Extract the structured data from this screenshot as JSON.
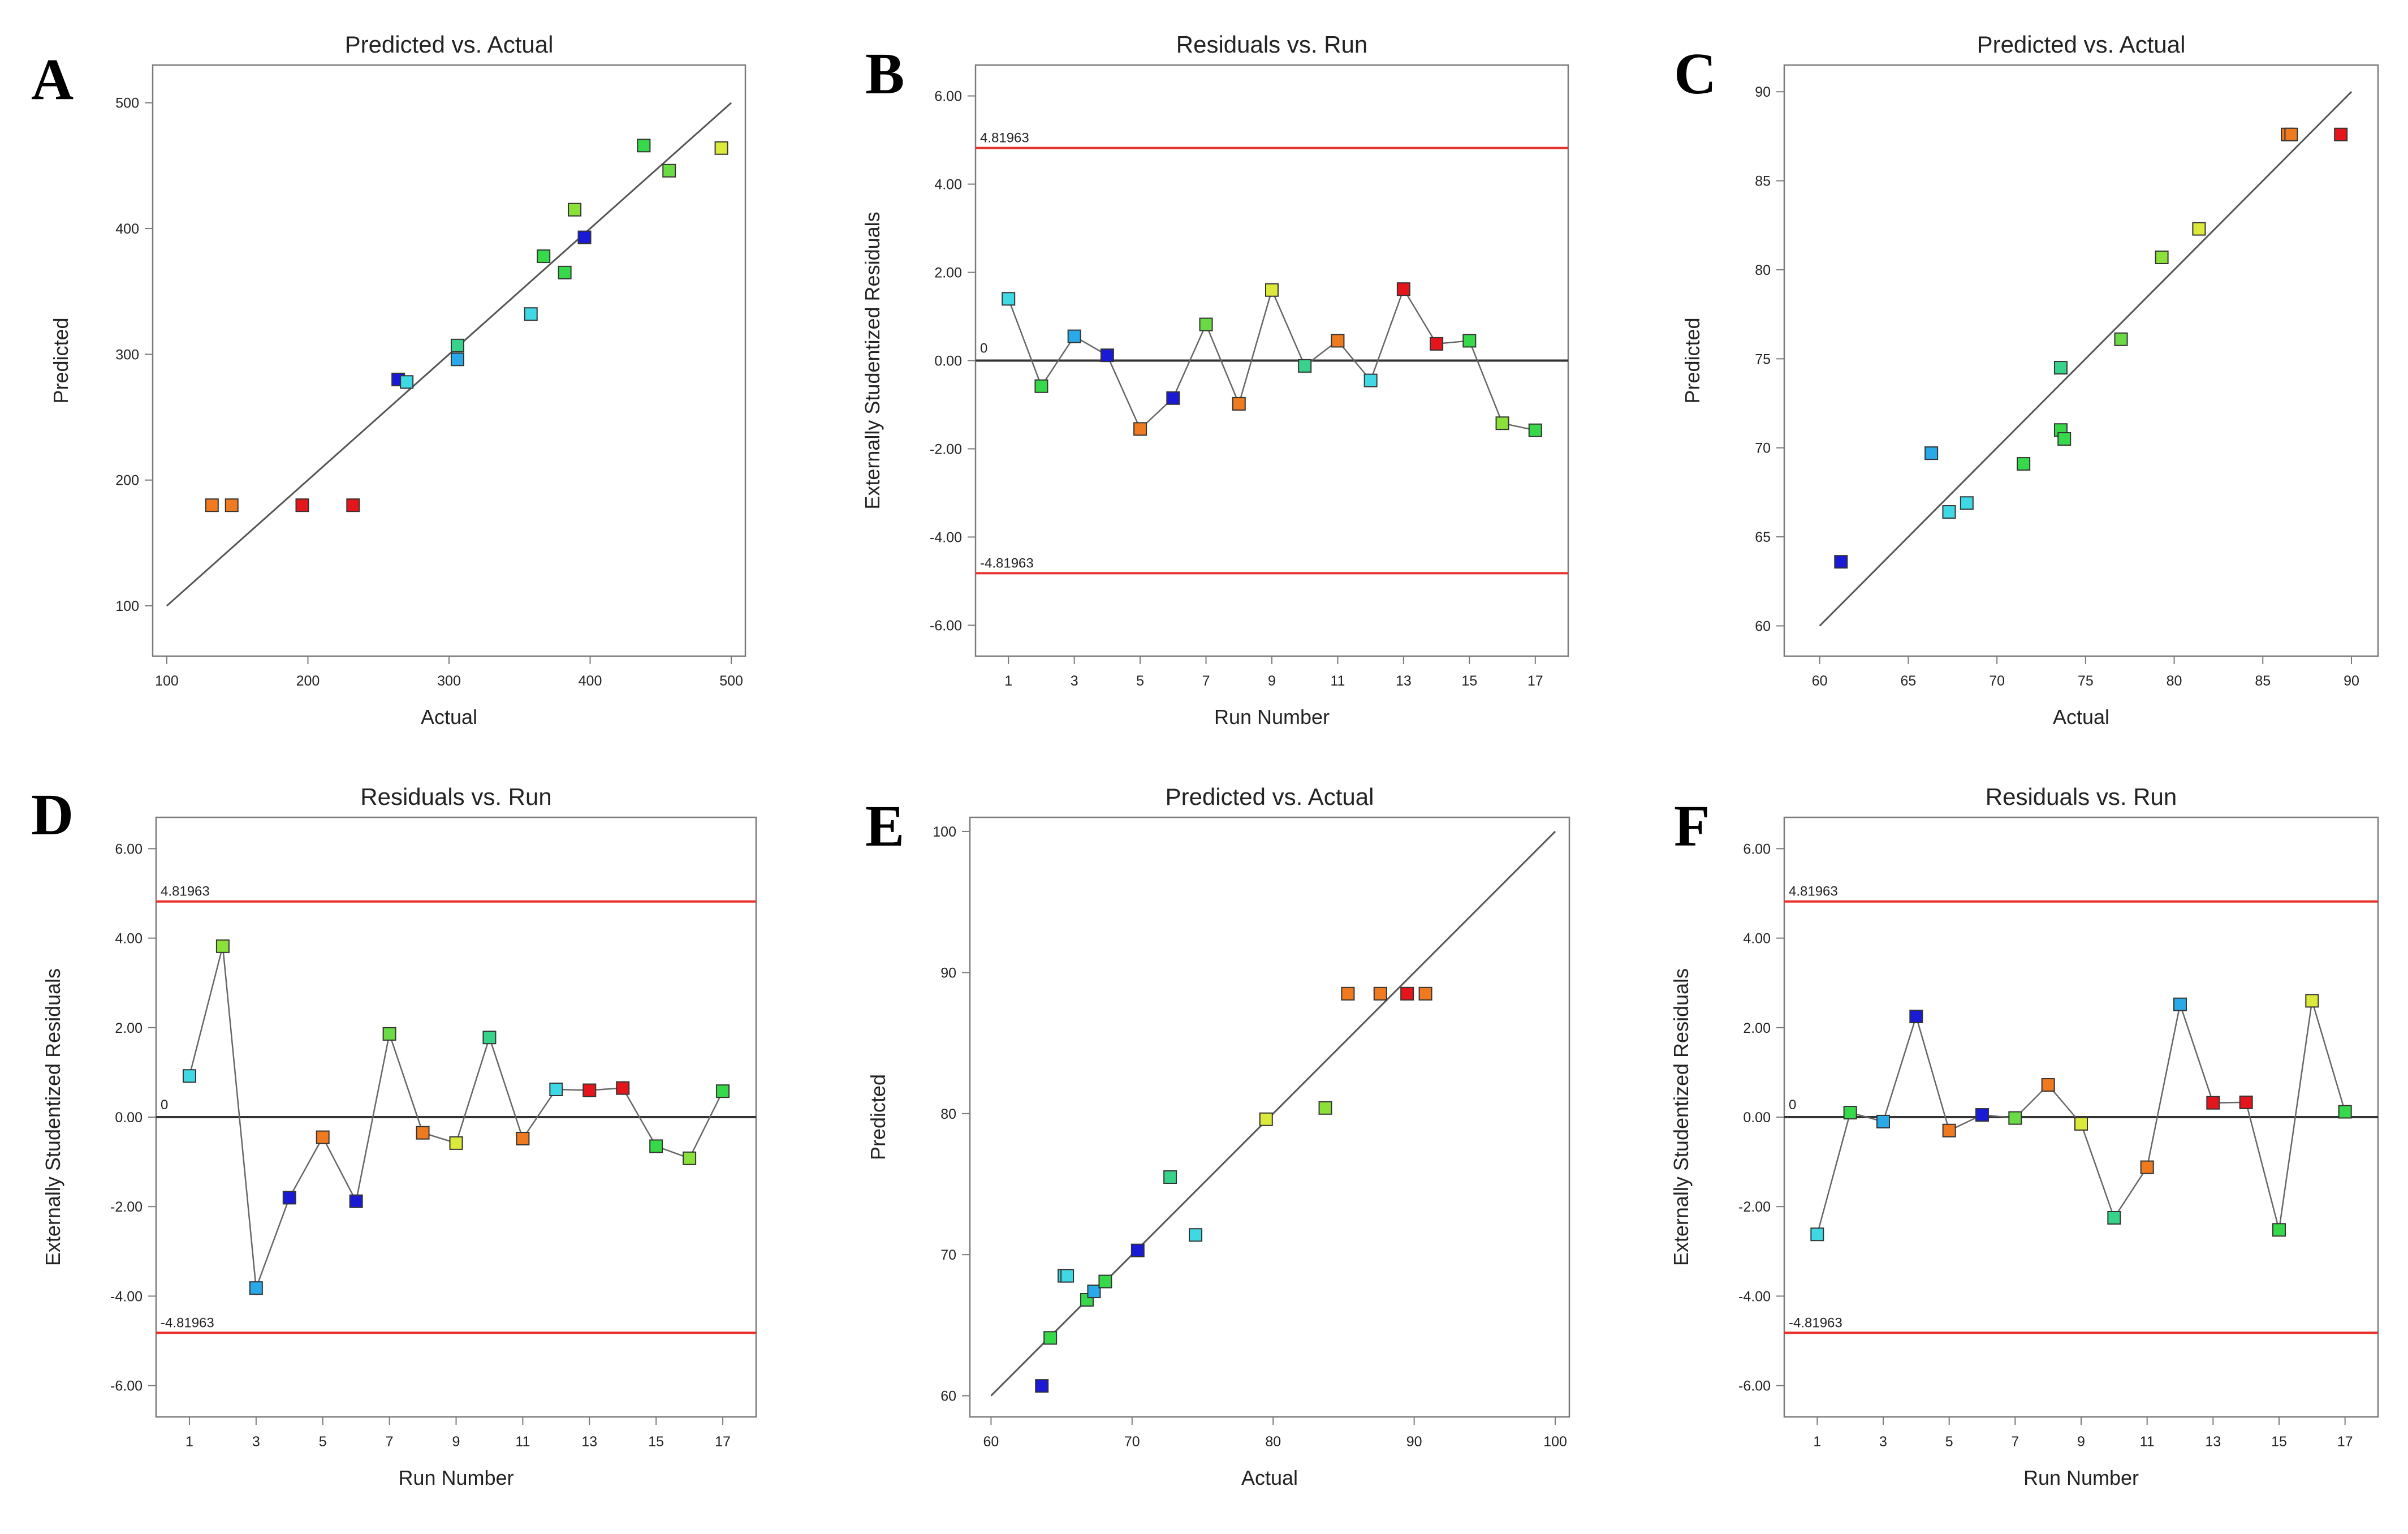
{
  "figure": {
    "background": "#ffffff",
    "plot_frame_color": "#7a7a7a",
    "fit_line_color": "#555555",
    "limit_line_color": "#e8312c",
    "zero_line_color": "#333333",
    "connector_color": "#666666"
  },
  "chart_data": [
    {
      "panel": "A",
      "type": "scatter",
      "title": "Predicted vs. Actual",
      "xlabel": "Actual",
      "ylabel": "Predicted",
      "xlim": [
        90,
        510
      ],
      "ylim": [
        60,
        530
      ],
      "xticks": [
        100,
        200,
        300,
        400,
        500
      ],
      "yticks": [
        100,
        200,
        300,
        400,
        500
      ],
      "tick_labels_x": [
        "100",
        "200",
        "300",
        "400",
        "500"
      ],
      "tick_labels_y": [
        "100",
        "200",
        "300",
        "400",
        "500"
      ],
      "reference_line": {
        "x": [
          100,
          500
        ],
        "y": [
          100,
          500
        ]
      },
      "points": [
        {
          "x": 132,
          "y": 180,
          "color": "#f07a20"
        },
        {
          "x": 146,
          "y": 180,
          "color": "#f07a20"
        },
        {
          "x": 196,
          "y": 180,
          "color": "#e5161b"
        },
        {
          "x": 232,
          "y": 180,
          "color": "#e5161b"
        },
        {
          "x": 264,
          "y": 280,
          "color": "#1a1ad6"
        },
        {
          "x": 270,
          "y": 278,
          "color": "#3fd9e6"
        },
        {
          "x": 306,
          "y": 307,
          "color": "#38d38a"
        },
        {
          "x": 306,
          "y": 296,
          "color": "#2aa9e8"
        },
        {
          "x": 358,
          "y": 332,
          "color": "#3fd9e6"
        },
        {
          "x": 367,
          "y": 378,
          "color": "#36d94a"
        },
        {
          "x": 382,
          "y": 365,
          "color": "#36d94a"
        },
        {
          "x": 389,
          "y": 415,
          "color": "#8be03a"
        },
        {
          "x": 396,
          "y": 393,
          "color": "#1a1ad6"
        },
        {
          "x": 438,
          "y": 466,
          "color": "#36d94a"
        },
        {
          "x": 456,
          "y": 446,
          "color": "#6bdb45"
        },
        {
          "x": 493,
          "y": 464,
          "color": "#dbe93a"
        }
      ]
    },
    {
      "panel": "B",
      "type": "line",
      "title": "Residuals vs. Run",
      "xlabel": "Run Number",
      "ylabel": "Externally Studentized Residuals",
      "xlim": [
        0,
        18
      ],
      "ylim": [
        -6.7,
        6.7
      ],
      "xticks": [
        1,
        3,
        5,
        7,
        9,
        11,
        13,
        15,
        17
      ],
      "yticks": [
        -6,
        -4,
        -2,
        0,
        2,
        4,
        6
      ],
      "tick_labels_x": [
        "1",
        "3",
        "5",
        "7",
        "9",
        "11",
        "13",
        "15",
        "17"
      ],
      "tick_labels_y": [
        "-6.00",
        "-4.00",
        "-2.00",
        "0.00",
        "2.00",
        "4.00",
        "6.00"
      ],
      "upper_limit": 4.81963,
      "lower_limit": -4.81963,
      "upper_limit_label": "4.81963",
      "lower_limit_label": "-4.81963",
      "zero_label": "0",
      "points": [
        {
          "x": 1,
          "y": 1.4,
          "color": "#3fd9e6"
        },
        {
          "x": 2,
          "y": -0.58,
          "color": "#36d94a"
        },
        {
          "x": 3,
          "y": 0.55,
          "color": "#2aa9e8"
        },
        {
          "x": 4,
          "y": 0.12,
          "color": "#1a1ad6"
        },
        {
          "x": 5,
          "y": -1.55,
          "color": "#f07a20"
        },
        {
          "x": 6,
          "y": -0.85,
          "color": "#1a1ad6"
        },
        {
          "x": 7,
          "y": 0.82,
          "color": "#6bdb45"
        },
        {
          "x": 8,
          "y": -0.98,
          "color": "#f07a20"
        },
        {
          "x": 9,
          "y": 1.6,
          "color": "#dbe93a"
        },
        {
          "x": 10,
          "y": -0.12,
          "color": "#38d38a"
        },
        {
          "x": 11,
          "y": 0.45,
          "color": "#f07a20"
        },
        {
          "x": 12,
          "y": -0.45,
          "color": "#3fd9e6"
        },
        {
          "x": 13,
          "y": 1.62,
          "color": "#e5161b"
        },
        {
          "x": 14,
          "y": 0.38,
          "color": "#e5161b"
        },
        {
          "x": 15,
          "y": 0.45,
          "color": "#36d94a"
        },
        {
          "x": 16,
          "y": -1.42,
          "color": "#8be03a"
        },
        {
          "x": 17,
          "y": -1.58,
          "color": "#36d94a"
        }
      ]
    },
    {
      "panel": "C",
      "type": "scatter",
      "title": "Predicted vs. Actual",
      "xlabel": "Actual",
      "ylabel": "Predicted",
      "xlim": [
        58,
        91.5
      ],
      "ylim": [
        58.3,
        91.5
      ],
      "xticks": [
        60,
        65,
        70,
        75,
        80,
        85,
        90
      ],
      "yticks": [
        60,
        65,
        70,
        75,
        80,
        85,
        90
      ],
      "tick_labels_x": [
        "60",
        "65",
        "70",
        "75",
        "80",
        "85",
        "90"
      ],
      "tick_labels_y": [
        "60",
        "65",
        "70",
        "75",
        "80",
        "85",
        "90"
      ],
      "reference_line": {
        "x": [
          60,
          90
        ],
        "y": [
          60,
          90
        ]
      },
      "points": [
        {
          "x": 61.2,
          "y": 63.6,
          "color": "#1a1ad6"
        },
        {
          "x": 66.3,
          "y": 69.7,
          "color": "#2aa9e8"
        },
        {
          "x": 67.3,
          "y": 66.4,
          "color": "#3fd9e6"
        },
        {
          "x": 68.3,
          "y": 66.9,
          "color": "#3fd9e6"
        },
        {
          "x": 71.5,
          "y": 69.1,
          "color": "#36d94a"
        },
        {
          "x": 73.6,
          "y": 71.0,
          "color": "#36d94a"
        },
        {
          "x": 73.6,
          "y": 74.5,
          "color": "#38d38a"
        },
        {
          "x": 73.8,
          "y": 70.5,
          "color": "#36d94a"
        },
        {
          "x": 77.0,
          "y": 76.1,
          "color": "#6bdb45"
        },
        {
          "x": 79.3,
          "y": 80.7,
          "color": "#8be03a"
        },
        {
          "x": 81.4,
          "y": 82.3,
          "color": "#dbe93a"
        },
        {
          "x": 86.4,
          "y": 87.6,
          "color": "#f07a20"
        },
        {
          "x": 86.6,
          "y": 87.6,
          "color": "#f07a20"
        },
        {
          "x": 89.4,
          "y": 87.6,
          "color": "#e5161b"
        }
      ]
    },
    {
      "panel": "D",
      "type": "line",
      "title": "Residuals vs. Run",
      "xlabel": "Run Number",
      "ylabel": "Externally Studentized Residuals",
      "xlim": [
        0,
        18
      ],
      "ylim": [
        -6.7,
        6.7
      ],
      "xticks": [
        1,
        3,
        5,
        7,
        9,
        11,
        13,
        15,
        17
      ],
      "yticks": [
        -6,
        -4,
        -2,
        0,
        2,
        4,
        6
      ],
      "tick_labels_x": [
        "1",
        "3",
        "5",
        "7",
        "9",
        "11",
        "13",
        "15",
        "17"
      ],
      "tick_labels_y": [
        "-6.00",
        "-4.00",
        "-2.00",
        "0.00",
        "2.00",
        "4.00",
        "6.00"
      ],
      "upper_limit": 4.81963,
      "lower_limit": -4.81963,
      "upper_limit_label": "4.81963",
      "lower_limit_label": "-4.81963",
      "zero_label": "0",
      "points": [
        {
          "x": 1,
          "y": 0.92,
          "color": "#3fd9e6"
        },
        {
          "x": 2,
          "y": 3.82,
          "color": "#8be03a"
        },
        {
          "x": 3,
          "y": -3.82,
          "color": "#2aa9e8"
        },
        {
          "x": 4,
          "y": -1.8,
          "color": "#1a1ad6"
        },
        {
          "x": 5,
          "y": -0.45,
          "color": "#f07a20"
        },
        {
          "x": 6,
          "y": -1.88,
          "color": "#1a1ad6"
        },
        {
          "x": 7,
          "y": 1.86,
          "color": "#6bdb45"
        },
        {
          "x": 8,
          "y": -0.35,
          "color": "#f07a20"
        },
        {
          "x": 9,
          "y": -0.58,
          "color": "#dbe93a"
        },
        {
          "x": 10,
          "y": 1.78,
          "color": "#38d38a"
        },
        {
          "x": 11,
          "y": -0.48,
          "color": "#f07a20"
        },
        {
          "x": 12,
          "y": 0.62,
          "color": "#3fd9e6"
        },
        {
          "x": 13,
          "y": 0.6,
          "color": "#e5161b"
        },
        {
          "x": 14,
          "y": 0.65,
          "color": "#e5161b"
        },
        {
          "x": 15,
          "y": -0.65,
          "color": "#36d94a"
        },
        {
          "x": 16,
          "y": -0.92,
          "color": "#8be03a"
        },
        {
          "x": 17,
          "y": 0.58,
          "color": "#36d94a"
        }
      ]
    },
    {
      "panel": "E",
      "type": "scatter",
      "title": "Predicted vs. Actual",
      "xlabel": "Actual",
      "ylabel": "Predicted",
      "xlim": [
        58.5,
        101
      ],
      "ylim": [
        58.5,
        101
      ],
      "xticks": [
        60,
        70,
        80,
        90,
        100
      ],
      "yticks": [
        60,
        70,
        80,
        90,
        100
      ],
      "tick_labels_x": [
        "60",
        "70",
        "80",
        "90",
        "100"
      ],
      "tick_labels_y": [
        "60",
        "70",
        "80",
        "90",
        "100"
      ],
      "reference_line": {
        "x": [
          60,
          100
        ],
        "y": [
          60,
          100
        ]
      },
      "points": [
        {
          "x": 63.6,
          "y": 60.7,
          "color": "#1a1ad6"
        },
        {
          "x": 64.2,
          "y": 64.1,
          "color": "#36d94a"
        },
        {
          "x": 65.2,
          "y": 68.5,
          "color": "#3fd9e6"
        },
        {
          "x": 65.4,
          "y": 68.5,
          "color": "#3fd9e6"
        },
        {
          "x": 66.8,
          "y": 66.8,
          "color": "#36d94a"
        },
        {
          "x": 67.3,
          "y": 67.4,
          "color": "#2aa9e8"
        },
        {
          "x": 68.1,
          "y": 68.1,
          "color": "#36d94a"
        },
        {
          "x": 70.4,
          "y": 70.3,
          "color": "#1a1ad6"
        },
        {
          "x": 72.7,
          "y": 75.5,
          "color": "#38d38a"
        },
        {
          "x": 74.5,
          "y": 71.4,
          "color": "#3fd9e6"
        },
        {
          "x": 79.5,
          "y": 79.6,
          "color": "#dbe93a"
        },
        {
          "x": 83.7,
          "y": 80.4,
          "color": "#8be03a"
        },
        {
          "x": 85.3,
          "y": 88.5,
          "color": "#f07a20"
        },
        {
          "x": 87.6,
          "y": 88.5,
          "color": "#f07a20"
        },
        {
          "x": 89.5,
          "y": 88.5,
          "color": "#e5161b"
        },
        {
          "x": 90.8,
          "y": 88.5,
          "color": "#f07a20"
        }
      ]
    },
    {
      "panel": "F",
      "type": "line",
      "title": "Residuals vs. Run",
      "xlabel": "Run Number",
      "ylabel": "Externally Studentized Residuals",
      "xlim": [
        0,
        18
      ],
      "ylim": [
        -6.7,
        6.7
      ],
      "xticks": [
        1,
        3,
        5,
        7,
        9,
        11,
        13,
        15,
        17
      ],
      "yticks": [
        -6,
        -4,
        -2,
        0,
        2,
        4,
        6
      ],
      "tick_labels_x": [
        "1",
        "3",
        "5",
        "7",
        "9",
        "11",
        "13",
        "15",
        "17"
      ],
      "tick_labels_y": [
        "-6.00",
        "-4.00",
        "-2.00",
        "0.00",
        "2.00",
        "4.00",
        "6.00"
      ],
      "upper_limit": 4.81963,
      "lower_limit": -4.81963,
      "upper_limit_label": "4.81963",
      "lower_limit_label": "-4.81963",
      "zero_label": "0",
      "points": [
        {
          "x": 1,
          "y": -2.62,
          "color": "#3fd9e6"
        },
        {
          "x": 2,
          "y": 0.1,
          "color": "#36d94a"
        },
        {
          "x": 3,
          "y": -0.1,
          "color": "#2aa9e8"
        },
        {
          "x": 4,
          "y": 2.25,
          "color": "#1a1ad6"
        },
        {
          "x": 5,
          "y": -0.3,
          "color": "#f07a20"
        },
        {
          "x": 6,
          "y": 0.05,
          "color": "#1a1ad6"
        },
        {
          "x": 7,
          "y": -0.02,
          "color": "#6bdb45"
        },
        {
          "x": 8,
          "y": 0.72,
          "color": "#f07a20"
        },
        {
          "x": 9,
          "y": -0.15,
          "color": "#dbe93a"
        },
        {
          "x": 10,
          "y": -2.25,
          "color": "#38d38a"
        },
        {
          "x": 11,
          "y": -1.12,
          "color": "#f07a20"
        },
        {
          "x": 12,
          "y": 2.52,
          "color": "#2aa9e8"
        },
        {
          "x": 13,
          "y": 0.32,
          "color": "#e5161b"
        },
        {
          "x": 14,
          "y": 0.33,
          "color": "#e5161b"
        },
        {
          "x": 15,
          "y": -2.52,
          "color": "#36d94a"
        },
        {
          "x": 16,
          "y": 2.6,
          "color": "#dbe93a"
        },
        {
          "x": 17,
          "y": 0.12,
          "color": "#36d94a"
        }
      ]
    }
  ]
}
